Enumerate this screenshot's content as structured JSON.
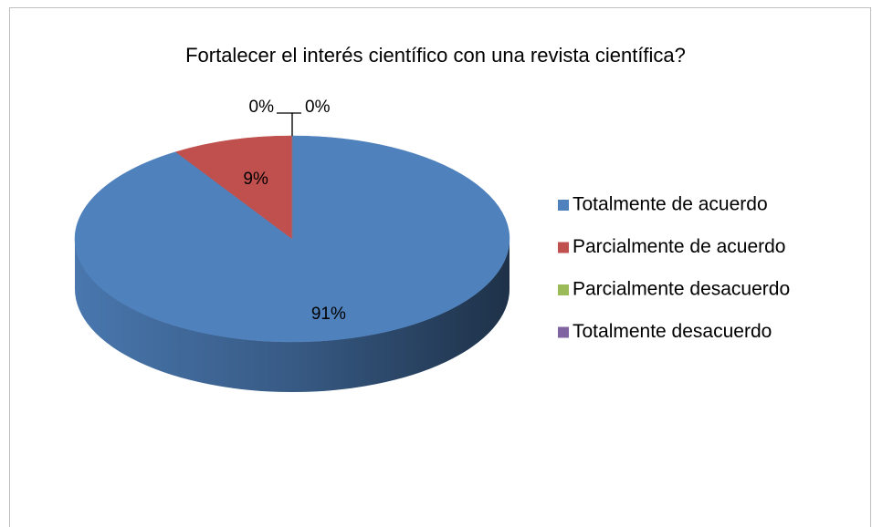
{
  "chart_data": {
    "type": "pie",
    "title": "Fortalecer el interés científico con una revista científica?",
    "categories": [
      "Totalmente de acuerdo",
      "Parcialmente de acuerdo",
      "Parcialmente desacuerdo",
      "Totalmente desacuerdo"
    ],
    "values": [
      91,
      9,
      0,
      0
    ],
    "value_labels": [
      "91%",
      "9%",
      "0%",
      "0%"
    ],
    "colors": [
      "#4f81bd",
      "#c0504d",
      "#9bbb59",
      "#8064a2"
    ],
    "legend": "right"
  }
}
